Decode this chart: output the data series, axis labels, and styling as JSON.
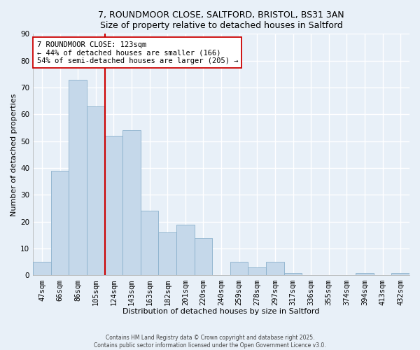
{
  "title1": "7, ROUNDMOOR CLOSE, SALTFORD, BRISTOL, BS31 3AN",
  "title2": "Size of property relative to detached houses in Saltford",
  "xlabel": "Distribution of detached houses by size in Saltford",
  "ylabel": "Number of detached properties",
  "categories": [
    "47sqm",
    "66sqm",
    "86sqm",
    "105sqm",
    "124sqm",
    "143sqm",
    "163sqm",
    "182sqm",
    "201sqm",
    "220sqm",
    "240sqm",
    "259sqm",
    "278sqm",
    "297sqm",
    "317sqm",
    "336sqm",
    "355sqm",
    "374sqm",
    "394sqm",
    "413sqm",
    "432sqm"
  ],
  "values": [
    5,
    39,
    73,
    63,
    52,
    54,
    24,
    16,
    19,
    14,
    0,
    5,
    3,
    5,
    1,
    0,
    0,
    0,
    1,
    0,
    1
  ],
  "bar_color": "#c5d8ea",
  "bar_edge_color": "#8ab0cc",
  "vline_x_index": 3.5,
  "vline_color": "#cc0000",
  "annotation_line1": "7 ROUNDMOOR CLOSE: 123sqm",
  "annotation_line2": "← 44% of detached houses are smaller (166)",
  "annotation_line3": "54% of semi-detached houses are larger (205) →",
  "annotation_box_edge_color": "#cc0000",
  "annotation_box_face_color": "#ffffff",
  "ylim": [
    0,
    90
  ],
  "yticks": [
    0,
    10,
    20,
    30,
    40,
    50,
    60,
    70,
    80,
    90
  ],
  "footer1": "Contains HM Land Registry data © Crown copyright and database right 2025.",
  "footer2": "Contains public sector information licensed under the Open Government Licence v3.0.",
  "background_color": "#e8f0f8",
  "plot_background_color": "#e8f0f8",
  "grid_color": "#ffffff",
  "title_fontsize": 9,
  "label_fontsize": 8,
  "tick_fontsize": 7.5,
  "annotation_fontsize": 7.5
}
